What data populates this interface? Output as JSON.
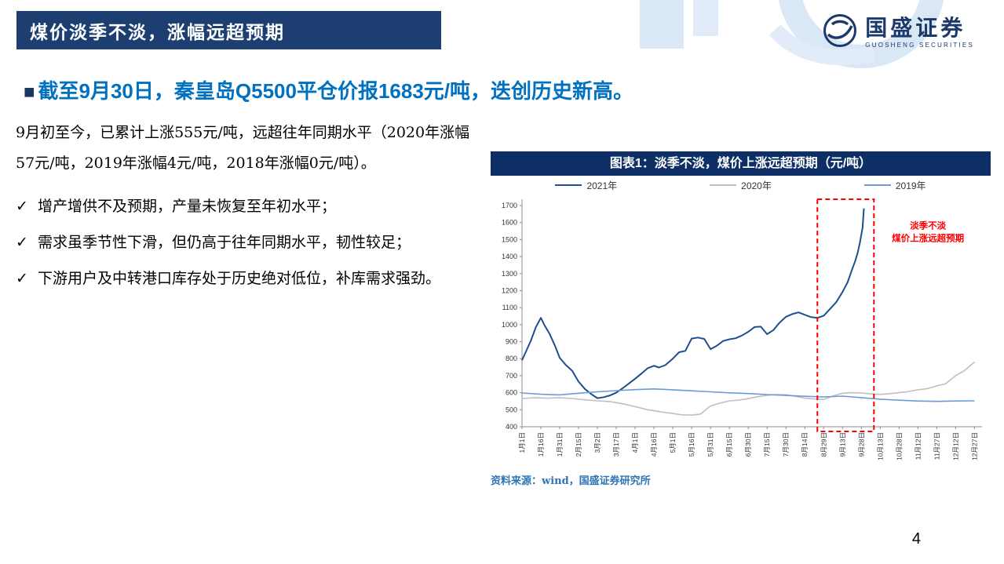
{
  "header": {
    "title": "煤价淡季不淡，涨幅远超预期",
    "logo_text": "国盛证券",
    "logo_subtext": "GUOSHENG SECURITIES"
  },
  "headline": {
    "bullet": "■",
    "text": "截至9月30日，秦皇岛Q5500平仓价报1683元/吨，迭创历史新高。"
  },
  "body": {
    "check_glyph": "✓",
    "paragraph": "9月初至今，已累计上涨555元/吨，远超往年同期水平（2020年涨幅57元/吨，2019年涨幅4元/吨，2018年涨幅0元/吨）。",
    "bullets": [
      "增产增供不及预期，产量未恢复至年初水平；",
      "需求虽季节性下滑，但仍高于往年同期水平，韧性较足；",
      "下游用户及中转港口库存处于历史绝对低位，补库需求强劲。"
    ]
  },
  "chart": {
    "source": "资料来源：wind，国盛证券研究所"
  },
  "page_number": "4",
  "chart_data": {
    "type": "line",
    "title": "图表1：淡季不淡，煤价上涨远超预期（元/吨）",
    "ylabel": "",
    "xlabel": "",
    "ylim": [
      400,
      1700
    ],
    "ytick_step": 100,
    "grid": false,
    "legend_position": "top",
    "x_tick_labels": [
      "1月1日",
      "1月16日",
      "1月31日",
      "2月15日",
      "3月2日",
      "3月17日",
      "4月1日",
      "4月16日",
      "5月1日",
      "5月16日",
      "5月31日",
      "6月15日",
      "6月30日",
      "7月15日",
      "7月30日",
      "8月14日",
      "8月29日",
      "9月13日",
      "9月28日",
      "10月13日",
      "10月28日",
      "11月12日",
      "11月27日",
      "12月12日",
      "12月27日"
    ],
    "x_tick_days": [
      1,
      16,
      31,
      46,
      61,
      76,
      91,
      106,
      121,
      136,
      151,
      166,
      181,
      196,
      211,
      226,
      241,
      256,
      271,
      286,
      301,
      316,
      331,
      346,
      361
    ],
    "series": [
      {
        "name": "2021年",
        "color": "#1F4E8F",
        "width": 2,
        "points": [
          [
            1,
            790
          ],
          [
            4,
            840
          ],
          [
            8,
            905
          ],
          [
            12,
            985
          ],
          [
            16,
            1040
          ],
          [
            19,
            995
          ],
          [
            23,
            945
          ],
          [
            27,
            880
          ],
          [
            31,
            805
          ],
          [
            36,
            762
          ],
          [
            41,
            728
          ],
          [
            46,
            665
          ],
          [
            51,
            622
          ],
          [
            56,
            592
          ],
          [
            61,
            568
          ],
          [
            66,
            574
          ],
          [
            71,
            584
          ],
          [
            76,
            600
          ],
          [
            81,
            626
          ],
          [
            86,
            654
          ],
          [
            91,
            682
          ],
          [
            96,
            712
          ],
          [
            101,
            744
          ],
          [
            106,
            758
          ],
          [
            110,
            748
          ],
          [
            115,
            762
          ],
          [
            121,
            800
          ],
          [
            126,
            838
          ],
          [
            131,
            846
          ],
          [
            136,
            918
          ],
          [
            141,
            924
          ],
          [
            146,
            916
          ],
          [
            151,
            856
          ],
          [
            156,
            876
          ],
          [
            161,
            904
          ],
          [
            166,
            914
          ],
          [
            171,
            920
          ],
          [
            176,
            936
          ],
          [
            181,
            958
          ],
          [
            186,
            986
          ],
          [
            191,
            988
          ],
          [
            196,
            944
          ],
          [
            201,
            968
          ],
          [
            206,
            1012
          ],
          [
            211,
            1046
          ],
          [
            216,
            1062
          ],
          [
            221,
            1072
          ],
          [
            226,
            1058
          ],
          [
            231,
            1044
          ],
          [
            236,
            1040
          ],
          [
            241,
            1052
          ],
          [
            246,
            1092
          ],
          [
            251,
            1132
          ],
          [
            256,
            1192
          ],
          [
            260,
            1248
          ],
          [
            263,
            1312
          ],
          [
            266,
            1372
          ],
          [
            268,
            1420
          ],
          [
            270,
            1488
          ],
          [
            272,
            1572
          ],
          [
            273,
            1683
          ]
        ]
      },
      {
        "name": "2020年",
        "color": "#BFBFBF",
        "width": 1.6,
        "points": [
          [
            1,
            566
          ],
          [
            11,
            570
          ],
          [
            21,
            568
          ],
          [
            31,
            570
          ],
          [
            41,
            566
          ],
          [
            51,
            558
          ],
          [
            61,
            552
          ],
          [
            71,
            548
          ],
          [
            81,
            535
          ],
          [
            91,
            518
          ],
          [
            101,
            500
          ],
          [
            111,
            488
          ],
          [
            121,
            478
          ],
          [
            128,
            470
          ],
          [
            136,
            468
          ],
          [
            143,
            474
          ],
          [
            148,
            505
          ],
          [
            151,
            522
          ],
          [
            158,
            538
          ],
          [
            166,
            552
          ],
          [
            173,
            556
          ],
          [
            181,
            565
          ],
          [
            188,
            576
          ],
          [
            196,
            585
          ],
          [
            203,
            589
          ],
          [
            211,
            588
          ],
          [
            218,
            580
          ],
          [
            226,
            568
          ],
          [
            233,
            563
          ],
          [
            241,
            560
          ],
          [
            248,
            580
          ],
          [
            256,
            597
          ],
          [
            263,
            600
          ],
          [
            271,
            598
          ],
          [
            278,
            593
          ],
          [
            286,
            590
          ],
          [
            293,
            594
          ],
          [
            301,
            600
          ],
          [
            308,
            606
          ],
          [
            316,
            617
          ],
          [
            323,
            623
          ],
          [
            331,
            640
          ],
          [
            338,
            652
          ],
          [
            346,
            700
          ],
          [
            353,
            730
          ],
          [
            361,
            780
          ]
        ]
      },
      {
        "name": "2019年",
        "color": "#6C9BD3",
        "width": 1.6,
        "points": [
          [
            1,
            598
          ],
          [
            16,
            591
          ],
          [
            31,
            587
          ],
          [
            46,
            597
          ],
          [
            61,
            605
          ],
          [
            76,
            612
          ],
          [
            91,
            618
          ],
          [
            106,
            622
          ],
          [
            121,
            617
          ],
          [
            136,
            611
          ],
          [
            151,
            605
          ],
          [
            166,
            599
          ],
          [
            181,
            595
          ],
          [
            196,
            589
          ],
          [
            211,
            584
          ],
          [
            226,
            579
          ],
          [
            241,
            575
          ],
          [
            256,
            580
          ],
          [
            271,
            571
          ],
          [
            286,
            562
          ],
          [
            301,
            556
          ],
          [
            316,
            551
          ],
          [
            331,
            549
          ],
          [
            346,
            551
          ],
          [
            361,
            552
          ]
        ]
      }
    ],
    "highlight_box": {
      "x_start_day": 236,
      "x_end_day": 281,
      "color": "#FF0000"
    },
    "annotation": {
      "day": 324,
      "value": 1565,
      "color": "#FF0000",
      "lines": [
        "淡季不淡",
        "煤价上涨远超预期"
      ]
    }
  }
}
